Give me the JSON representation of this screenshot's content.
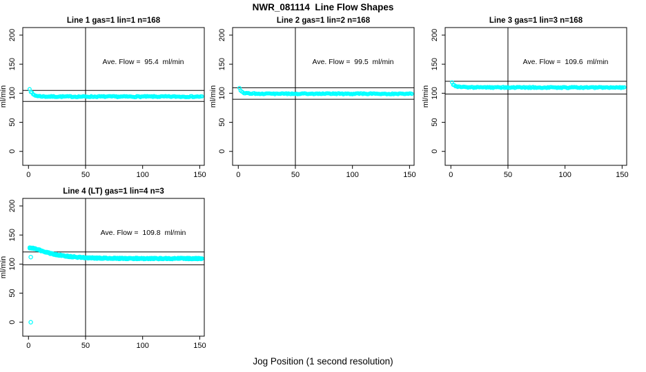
{
  "figure": {
    "title": "NWR_081114  Line Flow Shapes",
    "xlabel": "Jog Position (1 second resolution)"
  },
  "chart_data": [
    {
      "type": "scatter",
      "title": "Line 1 gas=1 lin=1 n=168",
      "annotation": "Ave. Flow =  95.4  ml/min",
      "ave_flow_ml_min": 95.4,
      "n": 168,
      "ylabel": "ml/min",
      "x_ticks": [
        0,
        50,
        100,
        150
      ],
      "y_ticks": [
        0,
        50,
        100,
        150,
        200
      ],
      "xlim": [
        -5,
        154
      ],
      "ylim": [
        -24,
        213
      ],
      "hlines": [
        104.9,
        85.9
      ],
      "vline": 50,
      "x_max": 152,
      "runs": 1,
      "noise": 0.9,
      "marker_color": "#00ffff",
      "profile": [
        [
          1,
          108
        ],
        [
          2,
          103
        ],
        [
          4,
          98
        ],
        [
          6,
          96
        ],
        [
          9,
          95
        ],
        [
          15,
          94.3
        ],
        [
          30,
          94.2
        ],
        [
          152,
          94.2
        ]
      ],
      "extra_points": [],
      "row": 0,
      "col": 0
    },
    {
      "type": "scatter",
      "title": "Line 2 gas=1 lin=2 n=168",
      "annotation": "Ave. Flow =  99.5  ml/min",
      "ave_flow_ml_min": 99.5,
      "n": 168,
      "ylabel": "ml/min",
      "x_ticks": [
        0,
        50,
        100,
        150
      ],
      "y_ticks": [
        0,
        50,
        100,
        150,
        200
      ],
      "xlim": [
        -5,
        154
      ],
      "ylim": [
        -24,
        213
      ],
      "hlines": [
        109.5,
        89.6
      ],
      "vline": 50,
      "x_max": 152,
      "runs": 1,
      "noise": 0.9,
      "marker_color": "#00ffff",
      "profile": [
        [
          1,
          110
        ],
        [
          2,
          105
        ],
        [
          4,
          101
        ],
        [
          7,
          100
        ],
        [
          12,
          99.5
        ],
        [
          30,
          99.2
        ],
        [
          152,
          99.0
        ]
      ],
      "extra_points": [],
      "row": 0,
      "col": 1
    },
    {
      "type": "scatter",
      "title": "Line 3 gas=1 lin=3 n=168",
      "annotation": "Ave. Flow =  109.6  ml/min",
      "ave_flow_ml_min": 109.6,
      "n": 168,
      "ylabel": "ml/min",
      "x_ticks": [
        0,
        50,
        100,
        150
      ],
      "y_ticks": [
        0,
        50,
        100,
        150,
        200
      ],
      "xlim": [
        -5,
        154
      ],
      "ylim": [
        -24,
        213
      ],
      "hlines": [
        120.6,
        98.6
      ],
      "vline": 50,
      "x_max": 152,
      "runs": 1,
      "noise": 0.9,
      "marker_color": "#00ffff",
      "profile": [
        [
          1,
          119
        ],
        [
          2,
          115
        ],
        [
          4,
          112
        ],
        [
          7,
          111
        ],
        [
          12,
          110.3
        ],
        [
          30,
          110
        ],
        [
          152,
          109.8
        ]
      ],
      "extra_points": [],
      "row": 0,
      "col": 2
    },
    {
      "type": "scatter",
      "title": "Line 4 (LT) gas=1 lin=4 n=3",
      "annotation": "Ave. Flow =  109.8  ml/min",
      "ave_flow_ml_min": 109.8,
      "n": 3,
      "ylabel": "ml/min",
      "x_ticks": [
        0,
        50,
        100,
        150
      ],
      "y_ticks": [
        0,
        50,
        100,
        150,
        200
      ],
      "xlim": [
        -5,
        154
      ],
      "ylim": [
        -24,
        213
      ],
      "hlines": [
        120.8,
        98.8
      ],
      "vline": 50,
      "x_max": 152,
      "runs": 3,
      "noise": 1.2,
      "marker_color": "#00ffff",
      "profile": [
        [
          1,
          128
        ],
        [
          4,
          127
        ],
        [
          8,
          125
        ],
        [
          12,
          122.5
        ],
        [
          16,
          120
        ],
        [
          20,
          118
        ],
        [
          25,
          116
        ],
        [
          30,
          114.5
        ],
        [
          36,
          113
        ],
        [
          42,
          112
        ],
        [
          50,
          111
        ],
        [
          60,
          110.3
        ],
        [
          80,
          109.8
        ],
        [
          110,
          109.5
        ],
        [
          152,
          109.5
        ]
      ],
      "extra_points": [
        [
          2,
          0
        ],
        [
          2,
          112
        ]
      ],
      "row": 1,
      "col": 0
    }
  ]
}
